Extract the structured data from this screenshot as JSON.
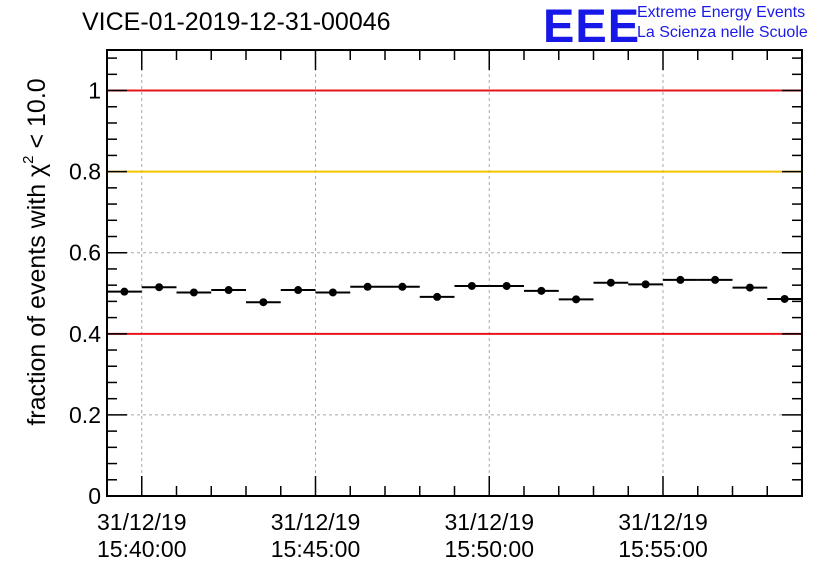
{
  "chart_data": {
    "type": "scatter",
    "title": "VICE-01-2019-12-31-00046",
    "ylabel": {
      "prefix": "fraction of events with ",
      "symbol": "χ",
      "superscript": "2",
      "suffix": " < 10.0"
    },
    "xlabel": "",
    "x_unit": "seconds since 31/12/19 15:40:00",
    "xlim": [
      -60,
      1140
    ],
    "ylim": [
      0,
      1.1
    ],
    "y_ticks": [
      0,
      0.2,
      0.4,
      0.6,
      0.8,
      1
    ],
    "y_tick_labels": [
      "0",
      "0.2",
      "0.4",
      "0.6",
      "0.8",
      "1"
    ],
    "x_ticks": [
      {
        "x": 0,
        "date": "31/12/19",
        "time": "15:40:00"
      },
      {
        "x": 300,
        "date": "31/12/19",
        "time": "15:45:00"
      },
      {
        "x": 600,
        "date": "31/12/19",
        "time": "15:50:00"
      },
      {
        "x": 900,
        "date": "31/12/19",
        "time": "15:55:00"
      }
    ],
    "grid": true,
    "reference_lines": [
      {
        "y": 1.0,
        "color": "#e8141c"
      },
      {
        "y": 0.8,
        "color": "#f5c400"
      },
      {
        "y": 0.4,
        "color": "#e8141c"
      }
    ],
    "series": [
      {
        "name": "fraction",
        "color": "#000000",
        "bin_width": 60,
        "x": [
          -30,
          30,
          90,
          150,
          210,
          270,
          330,
          390,
          450,
          510,
          570,
          630,
          690,
          750,
          810,
          870,
          930,
          990,
          1050,
          1110
        ],
        "y": [
          0.504,
          0.515,
          0.502,
          0.508,
          0.478,
          0.508,
          0.502,
          0.516,
          0.516,
          0.491,
          0.518,
          0.518,
          0.506,
          0.485,
          0.526,
          0.522,
          0.533,
          0.533,
          0.514,
          0.486
        ],
        "y_err": [
          0.006,
          0.006,
          0.006,
          0.006,
          0.006,
          0.006,
          0.006,
          0.006,
          0.006,
          0.006,
          0.006,
          0.006,
          0.006,
          0.006,
          0.006,
          0.006,
          0.006,
          0.006,
          0.006,
          0.006
        ]
      }
    ]
  },
  "logo": {
    "mark": "EEE",
    "line1": "Extreme Energy Events",
    "line2": "La Scienza nelle Scuole"
  }
}
